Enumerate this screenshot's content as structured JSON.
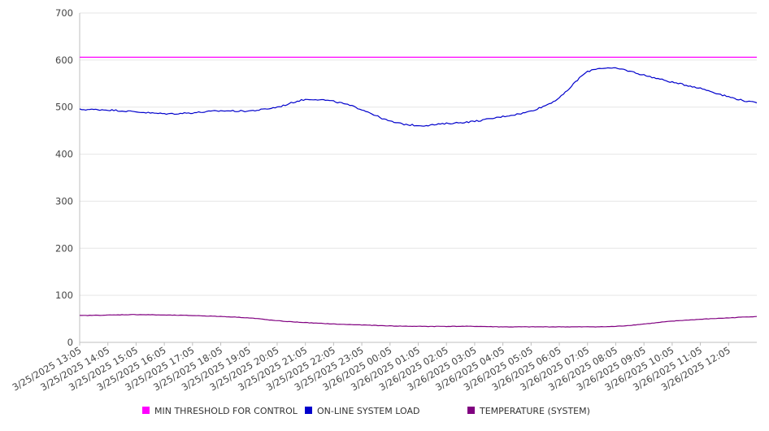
{
  "chart_data": {
    "type": "line",
    "title": "",
    "xlabel": "",
    "ylabel": "",
    "ylim": [
      0,
      700
    ],
    "yticks": [
      0,
      100,
      200,
      300,
      400,
      500,
      600,
      700
    ],
    "grid": true,
    "legend_position": "bottom",
    "x_tick_labels": [
      "3/25/2025 13:05",
      "3/25/2025 14:05",
      "3/25/2025 15:05",
      "3/25/2025 16:05",
      "3/25/2025 17:05",
      "3/25/2025 18:05",
      "3/25/2025 19:05",
      "3/25/2025 20:05",
      "3/25/2025 21:05",
      "3/25/2025 22:05",
      "3/25/2025 23:05",
      "3/26/2025 00:05",
      "3/26/2025 01:05",
      "3/26/2025 02:05",
      "3/26/2025 03:05",
      "3/26/2025 04:05",
      "3/26/2025 05:05",
      "3/26/2025 06:05",
      "3/26/2025 07:05",
      "3/26/2025 08:05",
      "3/26/2025 09:05",
      "3/26/2025 10:05",
      "3/26/2025 11:05",
      "3/26/2025 12:05"
    ],
    "x_end": "3/26/2025 13:00",
    "series": [
      {
        "name": "MIN THRESHOLD FOR CONTROL",
        "color": "#ff00ff",
        "values": [
          606,
          606,
          606,
          606,
          606,
          606,
          606,
          606,
          606,
          606,
          606,
          606,
          606,
          606,
          606,
          606,
          606,
          606,
          606,
          606,
          606,
          606,
          606,
          606,
          606
        ]
      },
      {
        "name": "ON-LINE SYSTEM LOAD",
        "color": "#0000cc",
        "values": [
          495,
          494,
          490,
          486,
          488,
          492,
          492,
          500,
          516,
          512,
          495,
          470,
          461,
          465,
          470,
          480,
          492,
          520,
          575,
          582,
          568,
          553,
          540,
          522,
          509
        ]
      },
      {
        "name": "TEMPERATURE (SYSTEM)",
        "color": "#800080",
        "values": [
          57,
          58,
          59,
          58,
          57,
          55,
          52,
          46,
          42,
          39,
          37,
          35,
          34,
          34,
          34,
          33,
          33,
          33,
          33,
          34,
          39,
          45,
          49,
          52,
          55
        ]
      }
    ]
  }
}
